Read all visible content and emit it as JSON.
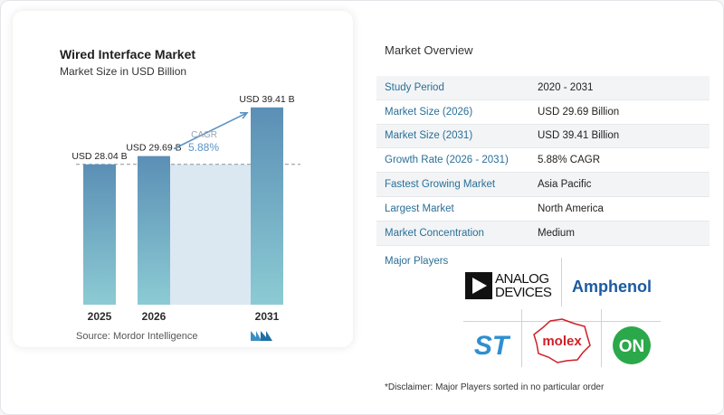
{
  "chart": {
    "title": "Wired Interface Market",
    "subtitle": "Market Size in USD Billion",
    "source": "Source:  Mordor Intelligence",
    "cagr_label": "CAGR",
    "cagr_value": "5.88%"
  },
  "chart_data": {
    "type": "bar",
    "title": "Wired Interface Market",
    "subtitle": "Market Size in USD Billion",
    "categories": [
      "2025",
      "2026",
      "2031"
    ],
    "values": [
      28.04,
      29.69,
      39.41
    ],
    "data_labels": [
      "USD 28.04 B",
      "USD 29.69 B",
      "USD 39.41 B"
    ],
    "ylim": [
      0,
      41
    ],
    "colors": {
      "bar_top": "#5b8fb5",
      "bar_bottom": "#8ccbd4",
      "band": "#dbe8f1",
      "arrow": "#5c93c4",
      "cagr_label": "#9aa4ad"
    }
  },
  "overview": {
    "title": "Market Overview",
    "rows": [
      {
        "label": "Study Period",
        "value": "2020 - 2031"
      },
      {
        "label": "Market Size (2026)",
        "value": "USD 29.69 Billion"
      },
      {
        "label": "Market Size (2031)",
        "value": "USD 39.41 Billion"
      },
      {
        "label": "Growth Rate (2026 - 2031)",
        "value": "5.88% CAGR"
      },
      {
        "label": "Fastest Growing Market",
        "value": "Asia Pacific"
      },
      {
        "label": "Largest Market",
        "value": "North America"
      },
      {
        "label": "Market Concentration",
        "value": "Medium"
      }
    ]
  },
  "players": {
    "label": "Major Players",
    "logos": {
      "analog_line1": "ANALOG",
      "analog_line2": "DEVICES",
      "amphenol": "Amphenol",
      "st": "ST",
      "molex": "molex",
      "on": "ON"
    }
  },
  "disclaimer": "*Disclaimer: Major Players sorted in no particular order"
}
